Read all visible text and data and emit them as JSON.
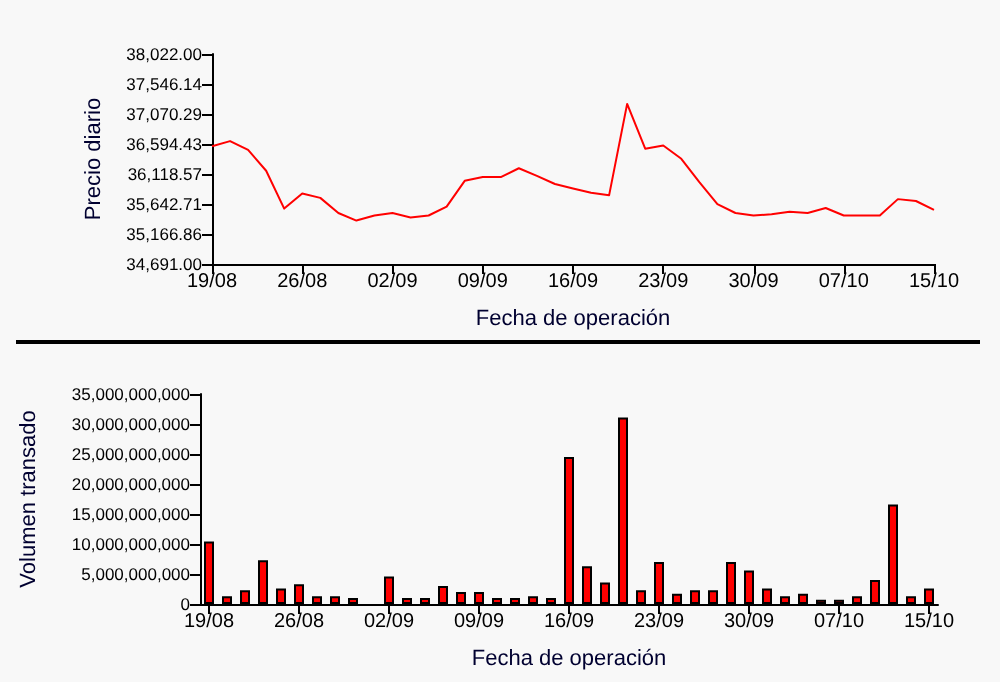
{
  "chart_data": [
    {
      "type": "line",
      "xlabel": "Fecha de operación",
      "ylabel": "Precio diario",
      "marker": "none",
      "color": "#ff0000",
      "categories": [
        "19/08",
        null,
        null,
        null,
        null,
        "26/08",
        null,
        null,
        null,
        null,
        "02/09",
        null,
        null,
        null,
        null,
        "09/09",
        null,
        null,
        null,
        null,
        "16/09",
        null,
        null,
        null,
        null,
        "23/09",
        null,
        null,
        null,
        null,
        "30/09",
        null,
        null,
        null,
        null,
        "07/10",
        null,
        null,
        null,
        null,
        "15/10"
      ],
      "values": [
        36560,
        36640,
        36500,
        36170,
        35570,
        35810,
        35740,
        35500,
        35380,
        35460,
        35500,
        35430,
        35460,
        35600,
        36010,
        36070,
        36070,
        36210,
        36090,
        35960,
        35890,
        35820,
        35780,
        37230,
        36520,
        36570,
        36360,
        35990,
        35640,
        35500,
        35460,
        35480,
        35520,
        35500,
        35580,
        35460,
        35460,
        35460,
        35720,
        35690,
        35550
      ],
      "ylim": [
        34691,
        38022
      ],
      "yticks": [
        {
          "value": 34691,
          "label": "34,691.00"
        },
        {
          "value": 35166.86,
          "label": "35,166.86"
        },
        {
          "value": 35642.71,
          "label": "35,642.71"
        },
        {
          "value": 36118.57,
          "label": "36,118.57"
        },
        {
          "value": 36594.43,
          "label": "36,594.43"
        },
        {
          "value": 37070.29,
          "label": "37,070.29"
        },
        {
          "value": 37546.14,
          "label": "37,546.14"
        },
        {
          "value": 38022,
          "label": "38,022.00"
        }
      ]
    },
    {
      "type": "bar",
      "xlabel": "Fecha de operación",
      "ylabel": "Volumen transado",
      "color": "#ff0000",
      "categories": [
        "19/08",
        null,
        null,
        null,
        null,
        "26/08",
        null,
        null,
        null,
        null,
        "02/09",
        null,
        null,
        null,
        null,
        "09/09",
        null,
        null,
        null,
        null,
        "16/09",
        null,
        null,
        null,
        null,
        "23/09",
        null,
        null,
        null,
        null,
        "30/09",
        null,
        null,
        null,
        null,
        "07/10",
        null,
        null,
        null,
        null,
        "15/10"
      ],
      "values": [
        10400000000,
        1300000000,
        2300000000,
        7300000000,
        2600000000,
        3300000000,
        1300000000,
        1300000000,
        1000000000,
        null,
        4600000000,
        1000000000,
        1000000000,
        3000000000,
        2000000000,
        2000000000,
        1000000000,
        1000000000,
        1300000000,
        1000000000,
        24500000000,
        6300000000,
        3600000000,
        31100000000,
        2300000000,
        7000000000,
        1700000000,
        2300000000,
        2300000000,
        7000000000,
        5600000000,
        2600000000,
        1300000000,
        1700000000,
        700000000,
        700000000,
        1300000000,
        4000000000,
        16600000000,
        1300000000,
        2600000000
      ],
      "ylim": [
        0,
        35000000000
      ],
      "yticks": [
        0,
        {
          "value": 5000000000,
          "label": "5,000,000,000"
        },
        {
          "value": 10000000000,
          "label": "10,000,000,000"
        },
        {
          "value": 15000000000,
          "label": "15,000,000,000"
        },
        {
          "value": 20000000000,
          "label": "20,000,000,000"
        },
        {
          "value": 25000000000,
          "label": "25,000,000,000"
        },
        {
          "value": 30000000000,
          "label": "30,000,000,000"
        },
        {
          "value": 35000000000,
          "label": "35,000,000,000"
        }
      ]
    }
  ]
}
